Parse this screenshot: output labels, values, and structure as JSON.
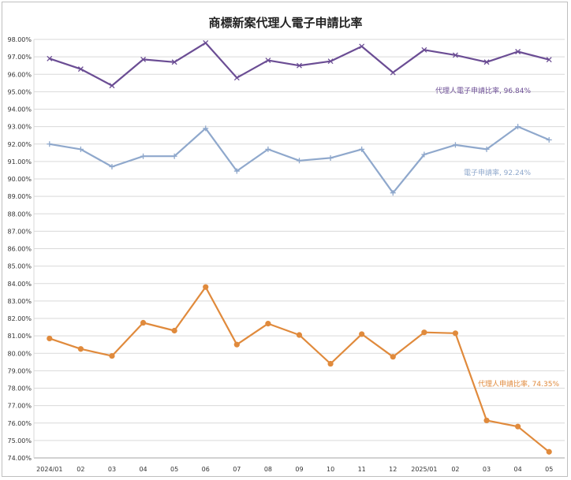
{
  "chart_data": {
    "type": "line",
    "title": "商標新案代理人電子申請比率",
    "xlabel": "",
    "ylabel": "",
    "ylim": [
      74,
      98
    ],
    "y_tick_step": 1,
    "grid": true,
    "legend": "inline labels",
    "categories": [
      "2024/01",
      "02",
      "03",
      "04",
      "05",
      "06",
      "07",
      "08",
      "09",
      "10",
      "11",
      "12",
      "2025/01",
      "02",
      "03",
      "04",
      "05"
    ],
    "y_ticks": [
      "98.00%",
      "97.00%",
      "96.00%",
      "95.00%",
      "94.00%",
      "93.00%",
      "92.00%",
      "91.00%",
      "90.00%",
      "89.00%",
      "88.00%",
      "87.00%",
      "86.00%",
      "85.00%",
      "84.00%",
      "83.00%",
      "82.00%",
      "81.00%",
      "80.00%",
      "79.00%",
      "78.00%",
      "77.00%",
      "76.00%",
      "75.00%",
      "74.00%"
    ],
    "series": [
      {
        "name": "代理人電子申請比率",
        "label": "代理人電子申請比率, 96.84%",
        "color": "#6b4d94",
        "marker": "x",
        "values": [
          96.9,
          96.3,
          95.35,
          96.85,
          96.7,
          97.8,
          95.8,
          96.8,
          96.5,
          96.75,
          97.6,
          96.1,
          97.4,
          97.1,
          96.7,
          97.3,
          96.84
        ]
      },
      {
        "name": "電子申請率",
        "label": "電子申請率, 92.24%",
        "color": "#8fa8cc",
        "marker": "plus",
        "values": [
          92.0,
          91.7,
          90.7,
          91.3,
          91.3,
          92.9,
          90.45,
          91.7,
          91.05,
          91.2,
          91.7,
          89.2,
          91.4,
          91.95,
          91.7,
          93.0,
          92.24
        ]
      },
      {
        "name": "代理人申請比率",
        "label": "代理人申請比率, 74.35%",
        "color": "#e08a3c",
        "marker": "circle",
        "values": [
          80.85,
          80.25,
          79.85,
          81.75,
          81.3,
          83.8,
          80.5,
          81.7,
          81.05,
          79.4,
          81.1,
          79.8,
          81.2,
          81.15,
          76.15,
          75.8,
          74.35
        ]
      }
    ]
  }
}
